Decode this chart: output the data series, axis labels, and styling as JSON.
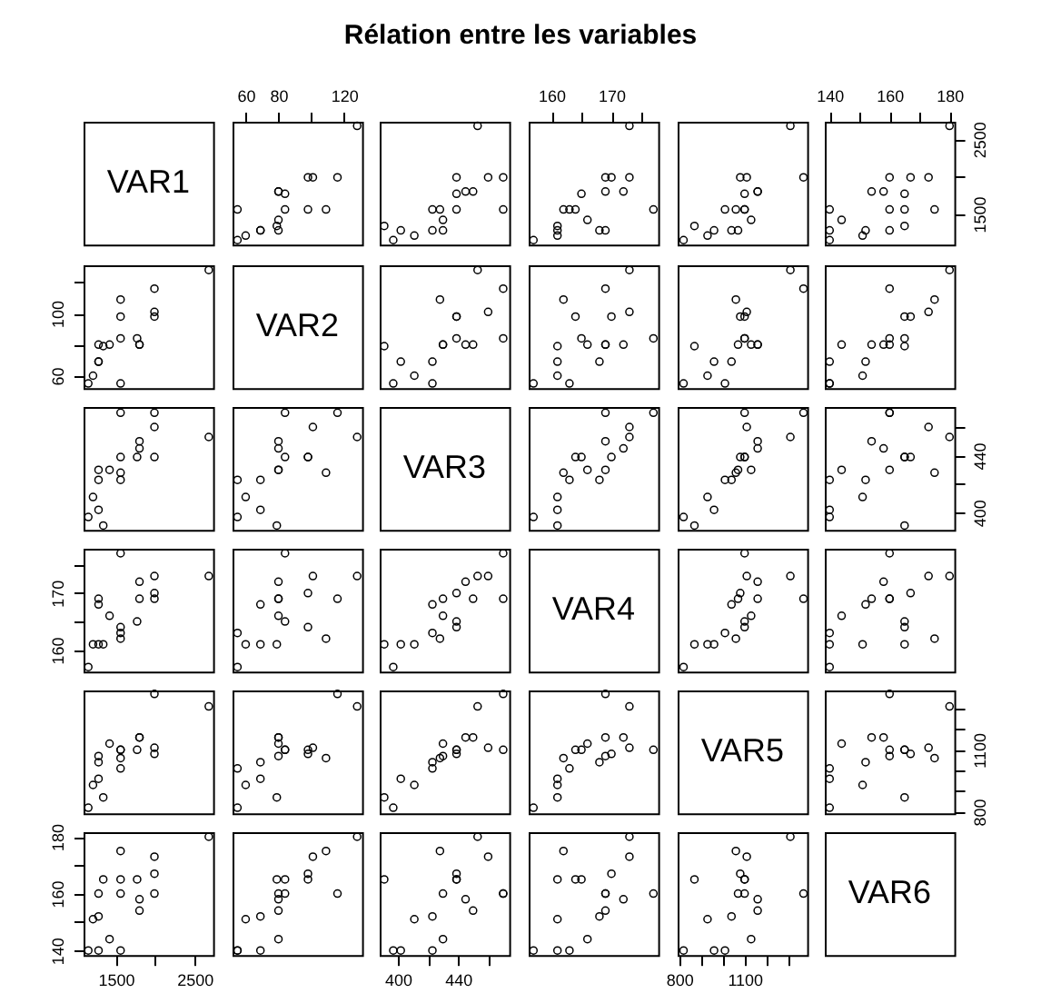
{
  "chart_data": [
    {
      "type": "other",
      "title": "Rélation entre les variables"
    },
    {
      "type": "other",
      "annotations": [
        "VAR1"
      ]
    },
    {
      "type": "scatter",
      "x": [
        55,
        69,
        55,
        80,
        60,
        69,
        80,
        84,
        79,
        98,
        84,
        109,
        101,
        98,
        116,
        80,
        80,
        128
      ],
      "values": [
        1150,
        1280,
        1560,
        1420,
        1210,
        1280,
        1280,
        1560,
        1340,
        1560,
        1770,
        1560,
        1990,
        1990,
        1990,
        1800,
        1800,
        2680
      ],
      "color": "#000000",
      "marker": "circle",
      "xlim": [
        52,
        131
      ],
      "ylim": [
        1090,
        2735
      ],
      "xticks": [
        60,
        80,
        {
          "value": 100,
          "label": null
        },
        120
      ],
      "tick_labels": "x"
    },
    {
      "type": "scatter",
      "x": [
        397,
        402,
        423,
        430,
        411,
        423,
        430,
        470,
        391,
        439,
        439,
        428,
        460,
        439,
        470,
        445,
        450,
        453
      ],
      "values": [
        1150,
        1280,
        1560,
        1420,
        1210,
        1280,
        1280,
        1560,
        1340,
        1560,
        1770,
        1560,
        1990,
        1990,
        1990,
        1800,
        1800,
        2680
      ],
      "color": "#000000",
      "marker": "circle",
      "xlim": [
        388,
        474
      ],
      "ylim": [
        1090,
        2735
      ],
      "tick_labels": false
    },
    {
      "type": "scatter",
      "x": [
        157,
        161,
        163,
        166,
        161,
        168,
        169,
        177,
        161,
        164,
        165,
        162,
        173,
        170,
        169,
        172,
        169,
        173
      ],
      "values": [
        1150,
        1280,
        1560,
        1420,
        1210,
        1280,
        1280,
        1560,
        1340,
        1560,
        1770,
        1560,
        1990,
        1990,
        1990,
        1800,
        1800,
        2680
      ],
      "color": "#000000",
      "marker": "circle",
      "xlim": [
        156.2,
        177.8
      ],
      "ylim": [
        1090,
        2735
      ],
      "xticks": [
        160,
        {
          "value": 165,
          "label": null
        },
        170,
        {
          "value": 175,
          "label": null
        }
      ],
      "tick_labels": "x"
    },
    {
      "type": "scatter",
      "x": [
        820,
        960,
        1010,
        1130,
        930,
        1040,
        1070,
        1100,
        870,
        1100,
        1100,
        1060,
        1110,
        1080,
        1370,
        1160,
        1160,
        1310
      ],
      "values": [
        1150,
        1280,
        1560,
        1420,
        1210,
        1280,
        1280,
        1560,
        1340,
        1560,
        1770,
        1560,
        1990,
        1990,
        1990,
        1800,
        1800,
        2680
      ],
      "color": "#000000",
      "marker": "circle",
      "xlim": [
        793,
        1387
      ],
      "ylim": [
        1090,
        2735
      ],
      "tick_labels": false
    },
    {
      "type": "scatter",
      "x": [
        140,
        140,
        140,
        144,
        151,
        152,
        160,
        160,
        165,
        165,
        165,
        175,
        173,
        167,
        160,
        158,
        154,
        180
      ],
      "values": [
        1150,
        1280,
        1560,
        1420,
        1210,
        1280,
        1280,
        1560,
        1340,
        1560,
        1770,
        1560,
        1990,
        1990,
        1990,
        1800,
        1800,
        2680
      ],
      "color": "#000000",
      "marker": "circle",
      "xlim": [
        138.4,
        181.6
      ],
      "ylim": [
        1090,
        2735
      ],
      "xticks": [
        140,
        {
          "value": 150,
          "label": null
        },
        160,
        {
          "value": 170,
          "label": null
        },
        180
      ],
      "yticks": [
        1500,
        {
          "value": 2000,
          "label": null
        },
        2500
      ]
    },
    {
      "type": "scatter",
      "x": [
        1150,
        1280,
        1560,
        1420,
        1210,
        1280,
        1280,
        1560,
        1340,
        1560,
        1770,
        1560,
        1990,
        1990,
        1990,
        1800,
        1800,
        2680
      ],
      "values": [
        55,
        69,
        55,
        80,
        60,
        69,
        80,
        84,
        79,
        98,
        84,
        109,
        101,
        98,
        116,
        80,
        80,
        128
      ],
      "color": "#000000",
      "marker": "circle",
      "xlim": [
        1090,
        2735
      ],
      "ylim": [
        52,
        131
      ],
      "yticks": [
        60,
        {
          "value": 80,
          "label": null
        },
        100,
        {
          "value": 120,
          "label": null
        }
      ],
      "tick_labels": "y"
    },
    {
      "type": "other",
      "annotations": [
        "VAR2"
      ]
    },
    {
      "type": "scatter",
      "x": [
        397,
        402,
        423,
        430,
        411,
        423,
        430,
        470,
        391,
        439,
        439,
        428,
        460,
        439,
        470,
        445,
        450,
        453
      ],
      "values": [
        55,
        69,
        55,
        80,
        60,
        69,
        80,
        84,
        79,
        98,
        84,
        109,
        101,
        98,
        116,
        80,
        80,
        128
      ],
      "color": "#000000",
      "marker": "circle",
      "xlim": [
        388,
        474
      ],
      "ylim": [
        52,
        131
      ],
      "tick_labels": false
    },
    {
      "type": "scatter",
      "x": [
        157,
        161,
        163,
        166,
        161,
        168,
        169,
        177,
        161,
        164,
        165,
        162,
        173,
        170,
        169,
        172,
        169,
        173
      ],
      "values": [
        55,
        69,
        55,
        80,
        60,
        69,
        80,
        84,
        79,
        98,
        84,
        109,
        101,
        98,
        116,
        80,
        80,
        128
      ],
      "color": "#000000",
      "marker": "circle",
      "xlim": [
        156.2,
        177.8
      ],
      "ylim": [
        52,
        131
      ],
      "tick_labels": false
    },
    {
      "type": "scatter",
      "x": [
        820,
        960,
        1010,
        1130,
        930,
        1040,
        1070,
        1100,
        870,
        1100,
        1100,
        1060,
        1110,
        1080,
        1370,
        1160,
        1160,
        1310
      ],
      "values": [
        55,
        69,
        55,
        80,
        60,
        69,
        80,
        84,
        79,
        98,
        84,
        109,
        101,
        98,
        116,
        80,
        80,
        128
      ],
      "color": "#000000",
      "marker": "circle",
      "xlim": [
        793,
        1387
      ],
      "ylim": [
        52,
        131
      ],
      "tick_labels": false
    },
    {
      "type": "scatter",
      "x": [
        140,
        140,
        140,
        144,
        151,
        152,
        160,
        160,
        165,
        165,
        165,
        175,
        173,
        167,
        160,
        158,
        154,
        180
      ],
      "values": [
        55,
        69,
        55,
        80,
        60,
        69,
        80,
        84,
        79,
        98,
        84,
        109,
        101,
        98,
        116,
        80,
        80,
        128
      ],
      "color": "#000000",
      "marker": "circle",
      "xlim": [
        138.4,
        181.6
      ],
      "ylim": [
        52,
        131
      ],
      "tick_labels": false
    },
    {
      "type": "scatter",
      "x": [
        1150,
        1280,
        1560,
        1420,
        1210,
        1280,
        1280,
        1560,
        1340,
        1560,
        1770,
        1560,
        1990,
        1990,
        1990,
        1800,
        1800,
        2680
      ],
      "values": [
        397,
        402,
        423,
        430,
        411,
        423,
        430,
        470,
        391,
        439,
        439,
        428,
        460,
        439,
        470,
        445,
        450,
        453
      ],
      "color": "#000000",
      "marker": "circle",
      "xlim": [
        1090,
        2735
      ],
      "ylim": [
        388,
        474
      ],
      "tick_labels": false
    },
    {
      "type": "scatter",
      "x": [
        55,
        69,
        55,
        80,
        60,
        69,
        80,
        84,
        79,
        98,
        84,
        109,
        101,
        98,
        116,
        80,
        80,
        128
      ],
      "values": [
        397,
        402,
        423,
        430,
        411,
        423,
        430,
        470,
        391,
        439,
        439,
        428,
        460,
        439,
        470,
        445,
        450,
        453
      ],
      "color": "#000000",
      "marker": "circle",
      "xlim": [
        52,
        131
      ],
      "ylim": [
        388,
        474
      ],
      "tick_labels": false
    },
    {
      "type": "other",
      "annotations": [
        "VAR3"
      ]
    },
    {
      "type": "scatter",
      "x": [
        157,
        161,
        163,
        166,
        161,
        168,
        169,
        177,
        161,
        164,
        165,
        162,
        173,
        170,
        169,
        172,
        169,
        173
      ],
      "values": [
        397,
        402,
        423,
        430,
        411,
        423,
        430,
        470,
        391,
        439,
        439,
        428,
        460,
        439,
        470,
        445,
        450,
        453
      ],
      "color": "#000000",
      "marker": "circle",
      "xlim": [
        156.2,
        177.8
      ],
      "ylim": [
        388,
        474
      ],
      "tick_labels": false
    },
    {
      "type": "scatter",
      "x": [
        820,
        960,
        1010,
        1130,
        930,
        1040,
        1070,
        1100,
        870,
        1100,
        1100,
        1060,
        1110,
        1080,
        1370,
        1160,
        1160,
        1310
      ],
      "values": [
        397,
        402,
        423,
        430,
        411,
        423,
        430,
        470,
        391,
        439,
        439,
        428,
        460,
        439,
        470,
        445,
        450,
        453
      ],
      "color": "#000000",
      "marker": "circle",
      "xlim": [
        793,
        1387
      ],
      "ylim": [
        388,
        474
      ],
      "tick_labels": false
    },
    {
      "type": "scatter",
      "x": [
        140,
        140,
        140,
        144,
        151,
        152,
        160,
        160,
        165,
        165,
        165,
        175,
        173,
        167,
        160,
        158,
        154,
        180
      ],
      "values": [
        397,
        402,
        423,
        430,
        411,
        423,
        430,
        470,
        391,
        439,
        439,
        428,
        460,
        439,
        470,
        445,
        450,
        453
      ],
      "color": "#000000",
      "marker": "circle",
      "xlim": [
        138.4,
        181.6
      ],
      "ylim": [
        388,
        474
      ],
      "yticks": [
        400,
        {
          "value": 420,
          "label": null
        },
        440,
        {
          "value": 460,
          "label": null
        }
      ],
      "tick_labels": "y"
    },
    {
      "type": "scatter",
      "x": [
        1150,
        1280,
        1560,
        1420,
        1210,
        1280,
        1280,
        1560,
        1340,
        1560,
        1770,
        1560,
        1990,
        1990,
        1990,
        1800,
        1800,
        2680
      ],
      "values": [
        157,
        161,
        163,
        166,
        161,
        168,
        169,
        177,
        161,
        164,
        165,
        162,
        173,
        170,
        169,
        172,
        169,
        173
      ],
      "color": "#000000",
      "marker": "circle",
      "xlim": [
        1090,
        2735
      ],
      "ylim": [
        156.2,
        177.8
      ],
      "yticks": [
        160,
        {
          "value": 165,
          "label": null
        },
        170,
        {
          "value": 175,
          "label": null
        }
      ],
      "tick_labels": "y"
    },
    {
      "type": "scatter",
      "x": [
        55,
        69,
        55,
        80,
        60,
        69,
        80,
        84,
        79,
        98,
        84,
        109,
        101,
        98,
        116,
        80,
        80,
        128
      ],
      "values": [
        157,
        161,
        163,
        166,
        161,
        168,
        169,
        177,
        161,
        164,
        165,
        162,
        173,
        170,
        169,
        172,
        169,
        173
      ],
      "color": "#000000",
      "marker": "circle",
      "xlim": [
        52,
        131
      ],
      "ylim": [
        156.2,
        177.8
      ],
      "tick_labels": false
    },
    {
      "type": "scatter",
      "x": [
        397,
        402,
        423,
        430,
        411,
        423,
        430,
        470,
        391,
        439,
        439,
        428,
        460,
        439,
        470,
        445,
        450,
        453
      ],
      "values": [
        157,
        161,
        163,
        166,
        161,
        168,
        169,
        177,
        161,
        164,
        165,
        162,
        173,
        170,
        169,
        172,
        169,
        173
      ],
      "color": "#000000",
      "marker": "circle",
      "xlim": [
        388,
        474
      ],
      "ylim": [
        156.2,
        177.8
      ],
      "tick_labels": false
    },
    {
      "type": "other",
      "annotations": [
        "VAR4"
      ]
    },
    {
      "type": "scatter",
      "x": [
        820,
        960,
        1010,
        1130,
        930,
        1040,
        1070,
        1100,
        870,
        1100,
        1100,
        1060,
        1110,
        1080,
        1370,
        1160,
        1160,
        1310
      ],
      "values": [
        157,
        161,
        163,
        166,
        161,
        168,
        169,
        177,
        161,
        164,
        165,
        162,
        173,
        170,
        169,
        172,
        169,
        173
      ],
      "color": "#000000",
      "marker": "circle",
      "xlim": [
        793,
        1387
      ],
      "ylim": [
        156.2,
        177.8
      ],
      "tick_labels": false
    },
    {
      "type": "scatter",
      "x": [
        140,
        140,
        140,
        144,
        151,
        152,
        160,
        160,
        165,
        165,
        165,
        175,
        173,
        167,
        160,
        158,
        154,
        180
      ],
      "values": [
        157,
        161,
        163,
        166,
        161,
        168,
        169,
        177,
        161,
        164,
        165,
        162,
        173,
        170,
        169,
        172,
        169,
        173
      ],
      "color": "#000000",
      "marker": "circle",
      "xlim": [
        138.4,
        181.6
      ],
      "ylim": [
        156.2,
        177.8
      ],
      "tick_labels": false
    },
    {
      "type": "scatter",
      "x": [
        1150,
        1280,
        1560,
        1420,
        1210,
        1280,
        1280,
        1560,
        1340,
        1560,
        1770,
        1560,
        1990,
        1990,
        1990,
        1800,
        1800,
        2680
      ],
      "values": [
        820,
        960,
        1010,
        1130,
        930,
        1040,
        1070,
        1100,
        870,
        1100,
        1100,
        1060,
        1110,
        1080,
        1370,
        1160,
        1160,
        1310
      ],
      "color": "#000000",
      "marker": "circle",
      "xlim": [
        1090,
        2735
      ],
      "ylim": [
        793,
        1387
      ],
      "tick_labels": false
    },
    {
      "type": "scatter",
      "x": [
        55,
        69,
        55,
        80,
        60,
        69,
        80,
        84,
        79,
        98,
        84,
        109,
        101,
        98,
        116,
        80,
        80,
        128
      ],
      "values": [
        820,
        960,
        1010,
        1130,
        930,
        1040,
        1070,
        1100,
        870,
        1100,
        1100,
        1060,
        1110,
        1080,
        1370,
        1160,
        1160,
        1310
      ],
      "color": "#000000",
      "marker": "circle",
      "xlim": [
        52,
        131
      ],
      "ylim": [
        793,
        1387
      ],
      "tick_labels": false
    },
    {
      "type": "scatter",
      "x": [
        397,
        402,
        423,
        430,
        411,
        423,
        430,
        470,
        391,
        439,
        439,
        428,
        460,
        439,
        470,
        445,
        450,
        453
      ],
      "values": [
        820,
        960,
        1010,
        1130,
        930,
        1040,
        1070,
        1100,
        870,
        1100,
        1100,
        1060,
        1110,
        1080,
        1370,
        1160,
        1160,
        1310
      ],
      "color": "#000000",
      "marker": "circle",
      "xlim": [
        388,
        474
      ],
      "ylim": [
        793,
        1387
      ],
      "tick_labels": false
    },
    {
      "type": "scatter",
      "x": [
        157,
        161,
        163,
        166,
        161,
        168,
        169,
        177,
        161,
        164,
        165,
        162,
        173,
        170,
        169,
        172,
        169,
        173
      ],
      "values": [
        820,
        960,
        1010,
        1130,
        930,
        1040,
        1070,
        1100,
        870,
        1100,
        1100,
        1060,
        1110,
        1080,
        1370,
        1160,
        1160,
        1310
      ],
      "color": "#000000",
      "marker": "circle",
      "xlim": [
        156.2,
        177.8
      ],
      "ylim": [
        793,
        1387
      ],
      "tick_labels": false
    },
    {
      "type": "other",
      "annotations": [
        "VAR5"
      ]
    },
    {
      "type": "scatter",
      "x": [
        140,
        140,
        140,
        144,
        151,
        152,
        160,
        160,
        165,
        165,
        165,
        175,
        173,
        167,
        160,
        158,
        154,
        180
      ],
      "values": [
        820,
        960,
        1010,
        1130,
        930,
        1040,
        1070,
        1100,
        870,
        1100,
        1100,
        1060,
        1110,
        1080,
        1370,
        1160,
        1160,
        1310
      ],
      "color": "#000000",
      "marker": "circle",
      "xlim": [
        138.4,
        181.6
      ],
      "ylim": [
        793,
        1387
      ],
      "yticks": [
        800,
        {
          "value": 900,
          "label": null
        },
        {
          "value": 1000,
          "label": null
        },
        1100,
        {
          "value": 1200,
          "label": null
        },
        {
          "value": 1300,
          "label": null
        }
      ],
      "tick_labels": "y"
    },
    {
      "type": "scatter",
      "x": [
        1150,
        1280,
        1560,
        1420,
        1210,
        1280,
        1280,
        1560,
        1340,
        1560,
        1770,
        1560,
        1990,
        1990,
        1990,
        1800,
        1800,
        2680
      ],
      "values": [
        140,
        140,
        140,
        144,
        151,
        152,
        160,
        160,
        165,
        165,
        165,
        175,
        173,
        167,
        160,
        158,
        154,
        180
      ],
      "color": "#000000",
      "marker": "circle",
      "xlim": [
        1090,
        2735
      ],
      "ylim": [
        138.4,
        181.6
      ],
      "xticks": [
        1500,
        {
          "value": 2000,
          "label": null
        },
        2500
      ],
      "yticks": [
        140,
        {
          "value": 150,
          "label": null
        },
        160,
        {
          "value": 170,
          "label": null
        },
        180
      ]
    },
    {
      "type": "scatter",
      "x": [
        55,
        69,
        55,
        80,
        60,
        69,
        80,
        84,
        79,
        98,
        84,
        109,
        101,
        98,
        116,
        80,
        80,
        128
      ],
      "values": [
        140,
        140,
        140,
        144,
        151,
        152,
        160,
        160,
        165,
        165,
        165,
        175,
        173,
        167,
        160,
        158,
        154,
        180
      ],
      "color": "#000000",
      "marker": "circle",
      "xlim": [
        52,
        131
      ],
      "ylim": [
        138.4,
        181.6
      ],
      "tick_labels": false
    },
    {
      "type": "scatter",
      "x": [
        397,
        402,
        423,
        430,
        411,
        423,
        430,
        470,
        391,
        439,
        439,
        428,
        460,
        439,
        470,
        445,
        450,
        453
      ],
      "values": [
        140,
        140,
        140,
        144,
        151,
        152,
        160,
        160,
        165,
        165,
        165,
        175,
        173,
        167,
        160,
        158,
        154,
        180
      ],
      "color": "#000000",
      "marker": "circle",
      "xlim": [
        388,
        474
      ],
      "ylim": [
        138.4,
        181.6
      ],
      "xticks": [
        400,
        {
          "value": 420,
          "label": null
        },
        440,
        {
          "value": 460,
          "label": null
        }
      ],
      "tick_labels": "x"
    },
    {
      "type": "scatter",
      "x": [
        157,
        161,
        163,
        166,
        161,
        168,
        169,
        177,
        161,
        164,
        165,
        162,
        173,
        170,
        169,
        172,
        169,
        173
      ],
      "values": [
        140,
        140,
        140,
        144,
        151,
        152,
        160,
        160,
        165,
        165,
        165,
        175,
        173,
        167,
        160,
        158,
        154,
        180
      ],
      "color": "#000000",
      "marker": "circle",
      "xlim": [
        156.2,
        177.8
      ],
      "ylim": [
        138.4,
        181.6
      ],
      "tick_labels": false
    },
    {
      "type": "scatter",
      "x": [
        820,
        960,
        1010,
        1130,
        930,
        1040,
        1070,
        1100,
        870,
        1100,
        1100,
        1060,
        1110,
        1080,
        1370,
        1160,
        1160,
        1310
      ],
      "values": [
        140,
        140,
        140,
        144,
        151,
        152,
        160,
        160,
        165,
        165,
        165,
        175,
        173,
        167,
        160,
        158,
        154,
        180
      ],
      "color": "#000000",
      "marker": "circle",
      "xlim": [
        793,
        1387
      ],
      "ylim": [
        138.4,
        181.6
      ],
      "xticks": [
        800,
        {
          "value": 900,
          "label": null
        },
        {
          "value": 1000,
          "label": null
        },
        1100,
        {
          "value": 1200,
          "label": null
        },
        {
          "value": 1300,
          "label": null
        }
      ],
      "tick_labels": "x"
    },
    {
      "type": "other",
      "annotations": [
        "VAR6"
      ]
    }
  ]
}
